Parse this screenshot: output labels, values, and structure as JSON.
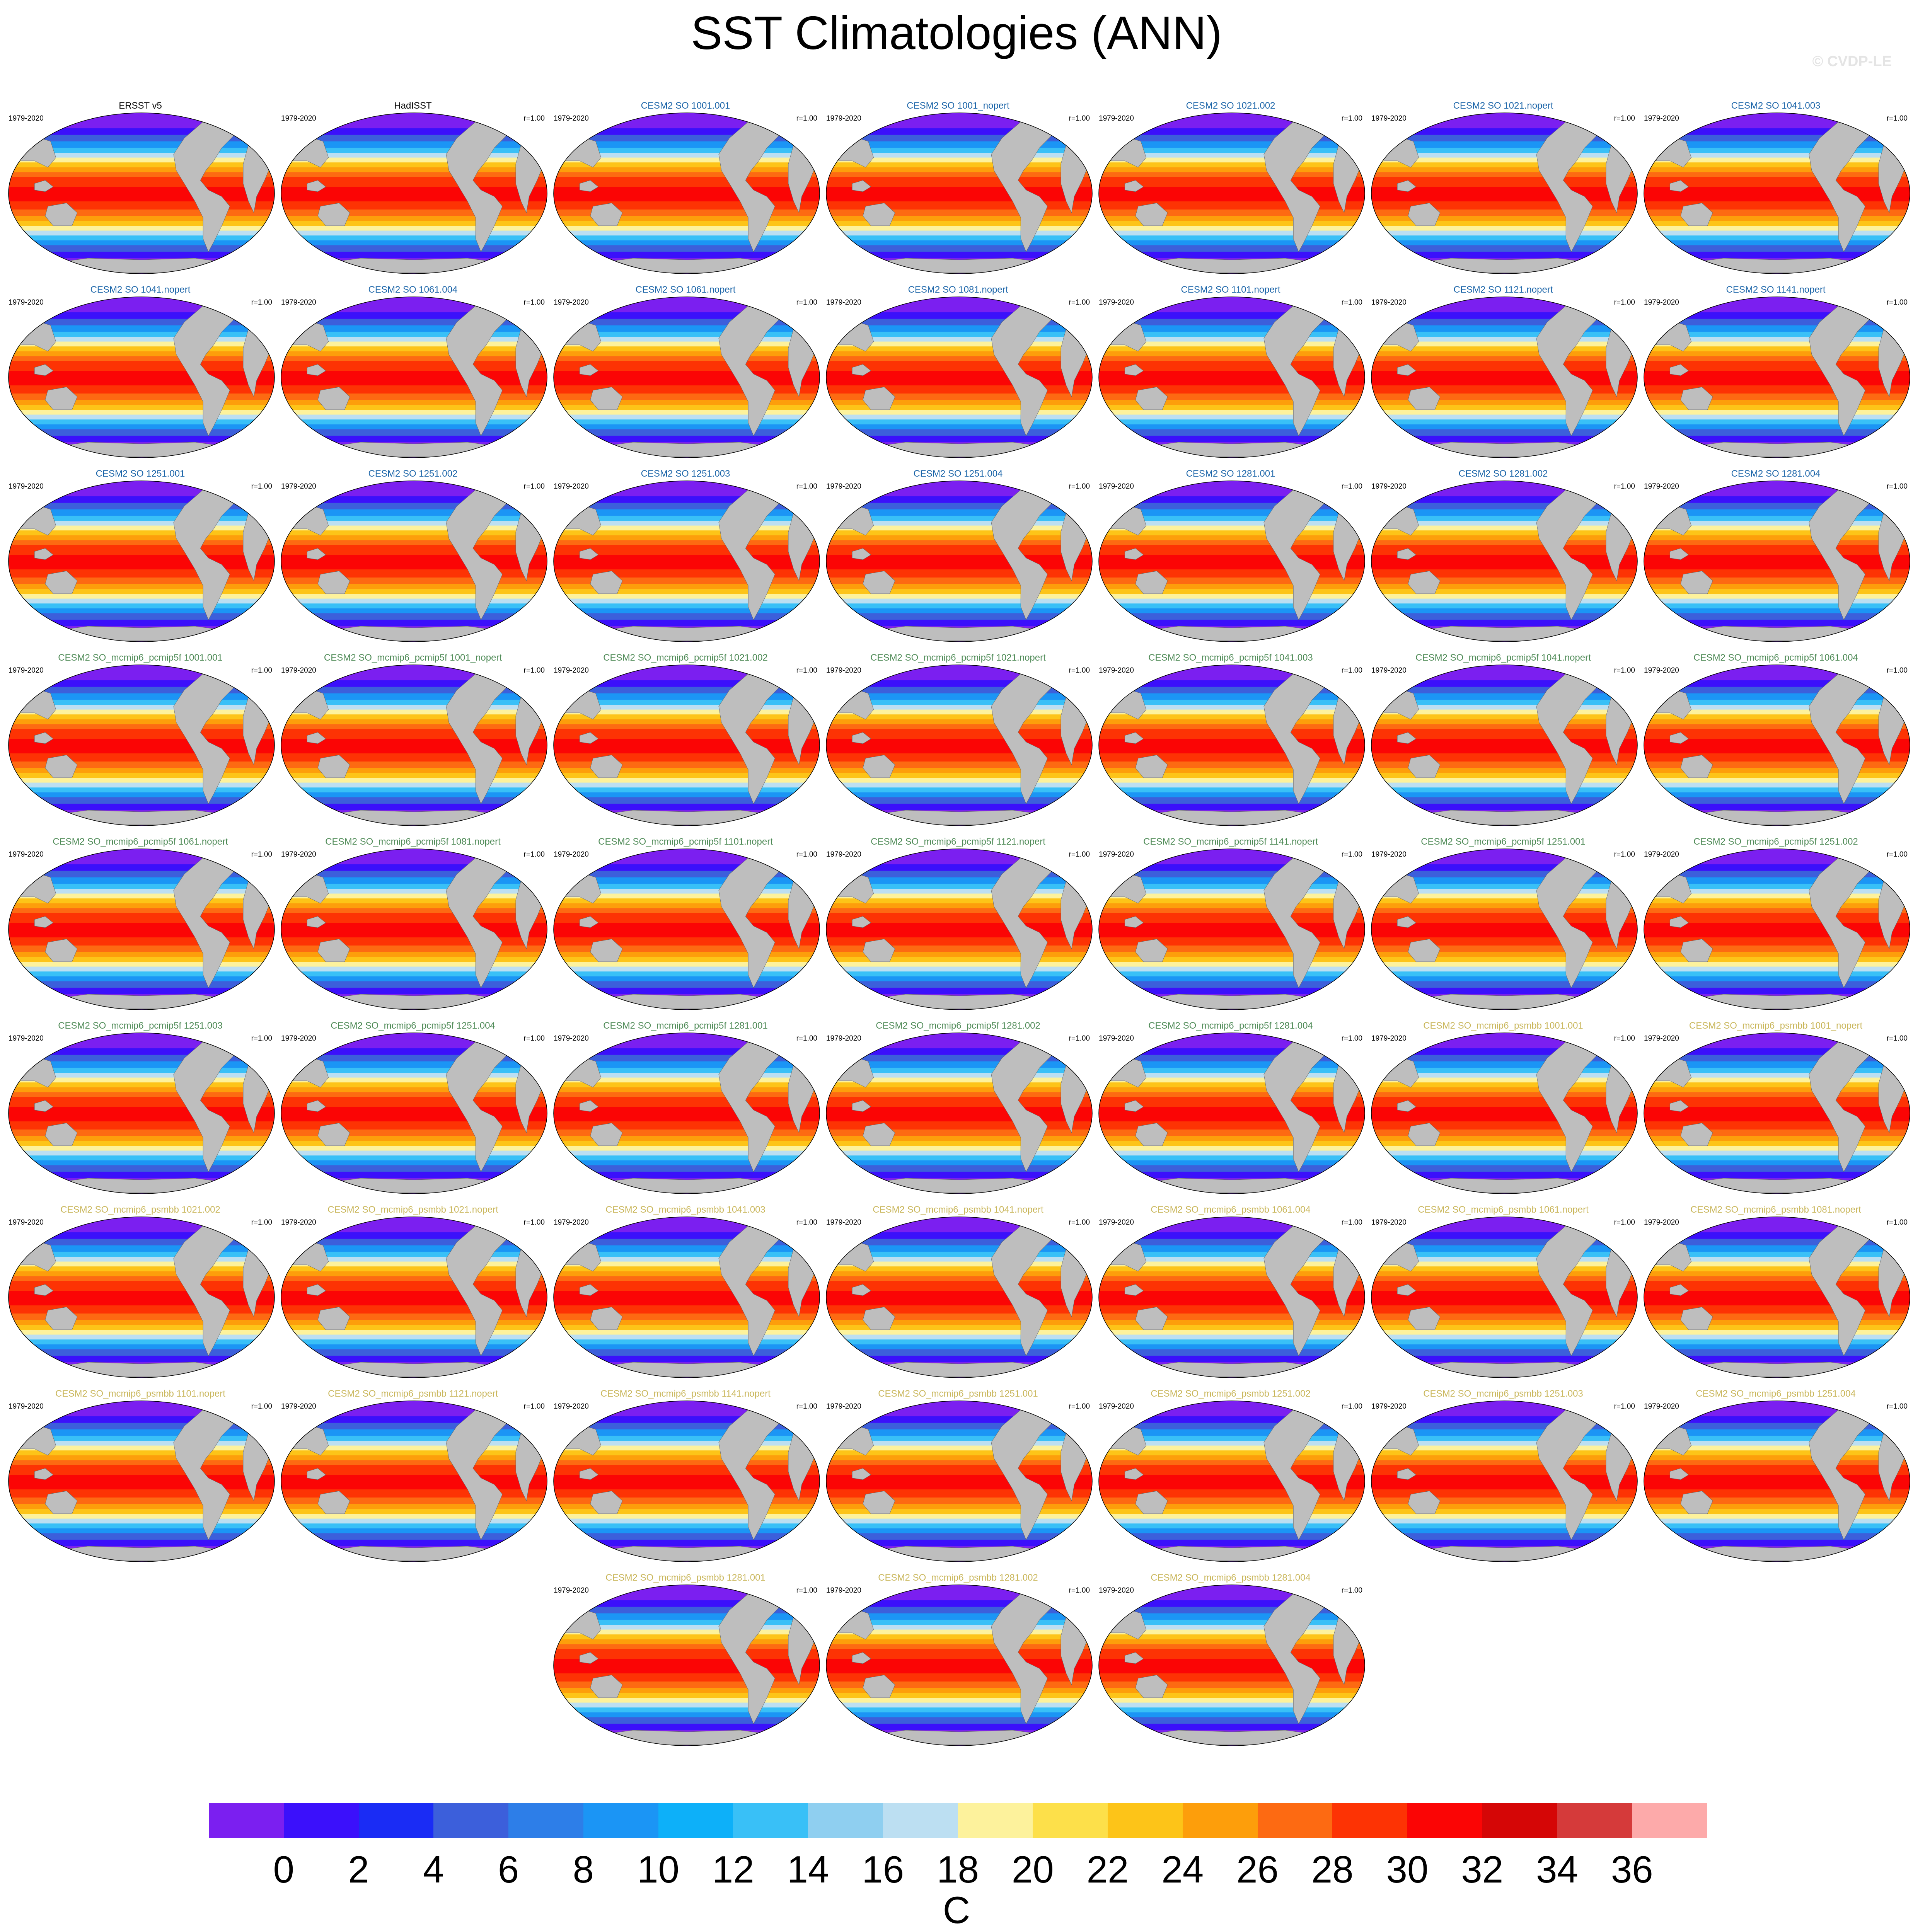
{
  "title": "SST Climatologies (ANN)",
  "watermark": "© CVDP-LE",
  "colors": {
    "obs_title": "#000000",
    "group1_title": "#1a64a8",
    "group2_title": "#4e8a56",
    "group3_title": "#c9b65a",
    "land": "#bebebe"
  },
  "chart_data": {
    "type": "heatmap",
    "projection": "Robinson (global map panels)",
    "variable": "SST",
    "season": "ANN",
    "years": "1979-2020",
    "panels": [
      {
        "title": "ERSST v5",
        "years": "1979-2020",
        "r": "",
        "group": "obs"
      },
      {
        "title": "HadISST",
        "years": "1979-2020",
        "r": "r=1.00",
        "group": "obs"
      },
      {
        "title": "CESM2 SO 1001.001",
        "years": "1979-2020",
        "r": "r=1.00",
        "group": "group1"
      },
      {
        "title": "CESM2 SO 1001_nopert",
        "years": "1979-2020",
        "r": "r=1.00",
        "group": "group1"
      },
      {
        "title": "CESM2 SO 1021.002",
        "years": "1979-2020",
        "r": "r=1.00",
        "group": "group1"
      },
      {
        "title": "CESM2 SO 1021.nopert",
        "years": "1979-2020",
        "r": "r=1.00",
        "group": "group1"
      },
      {
        "title": "CESM2 SO 1041.003",
        "years": "1979-2020",
        "r": "r=1.00",
        "group": "group1"
      },
      {
        "title": "CESM2 SO 1041.nopert",
        "years": "1979-2020",
        "r": "r=1.00",
        "group": "group1"
      },
      {
        "title": "CESM2 SO 1061.004",
        "years": "1979-2020",
        "r": "r=1.00",
        "group": "group1"
      },
      {
        "title": "CESM2 SO 1061.nopert",
        "years": "1979-2020",
        "r": "r=1.00",
        "group": "group1"
      },
      {
        "title": "CESM2 SO 1081.nopert",
        "years": "1979-2020",
        "r": "r=1.00",
        "group": "group1"
      },
      {
        "title": "CESM2 SO 1101.nopert",
        "years": "1979-2020",
        "r": "r=1.00",
        "group": "group1"
      },
      {
        "title": "CESM2 SO 1121.nopert",
        "years": "1979-2020",
        "r": "r=1.00",
        "group": "group1"
      },
      {
        "title": "CESM2 SO 1141.nopert",
        "years": "1979-2020",
        "r": "r=1.00",
        "group": "group1"
      },
      {
        "title": "CESM2 SO 1251.001",
        "years": "1979-2020",
        "r": "r=1.00",
        "group": "group1"
      },
      {
        "title": "CESM2 SO 1251.002",
        "years": "1979-2020",
        "r": "r=1.00",
        "group": "group1"
      },
      {
        "title": "CESM2 SO 1251.003",
        "years": "1979-2020",
        "r": "r=1.00",
        "group": "group1"
      },
      {
        "title": "CESM2 SO 1251.004",
        "years": "1979-2020",
        "r": "r=1.00",
        "group": "group1"
      },
      {
        "title": "CESM2 SO 1281.001",
        "years": "1979-2020",
        "r": "r=1.00",
        "group": "group1"
      },
      {
        "title": "CESM2 SO 1281.002",
        "years": "1979-2020",
        "r": "r=1.00",
        "group": "group1"
      },
      {
        "title": "CESM2 SO 1281.004",
        "years": "1979-2020",
        "r": "r=1.00",
        "group": "group1"
      },
      {
        "title": "CESM2 SO_mcmip6_pcmip5f 1001.001",
        "years": "1979-2020",
        "r": "r=1.00",
        "group": "group2"
      },
      {
        "title": "CESM2 SO_mcmip6_pcmip5f 1001_nopert",
        "years": "1979-2020",
        "r": "r=1.00",
        "group": "group2"
      },
      {
        "title": "CESM2 SO_mcmip6_pcmip5f 1021.002",
        "years": "1979-2020",
        "r": "r=1.00",
        "group": "group2"
      },
      {
        "title": "CESM2 SO_mcmip6_pcmip5f 1021.nopert",
        "years": "1979-2020",
        "r": "r=1.00",
        "group": "group2"
      },
      {
        "title": "CESM2 SO_mcmip6_pcmip5f 1041.003",
        "years": "1979-2020",
        "r": "r=1.00",
        "group": "group2"
      },
      {
        "title": "CESM2 SO_mcmip6_pcmip5f 1041.nopert",
        "years": "1979-2020",
        "r": "r=1.00",
        "group": "group2"
      },
      {
        "title": "CESM2 SO_mcmip6_pcmip5f 1061.004",
        "years": "1979-2020",
        "r": "r=1.00",
        "group": "group2"
      },
      {
        "title": "CESM2 SO_mcmip6_pcmip5f 1061.nopert",
        "years": "1979-2020",
        "r": "r=1.00",
        "group": "group2"
      },
      {
        "title": "CESM2 SO_mcmip6_pcmip5f 1081.nopert",
        "years": "1979-2020",
        "r": "r=1.00",
        "group": "group2"
      },
      {
        "title": "CESM2 SO_mcmip6_pcmip5f 1101.nopert",
        "years": "1979-2020",
        "r": "r=1.00",
        "group": "group2"
      },
      {
        "title": "CESM2 SO_mcmip6_pcmip5f 1121.nopert",
        "years": "1979-2020",
        "r": "r=1.00",
        "group": "group2"
      },
      {
        "title": "CESM2 SO_mcmip6_pcmip5f 1141.nopert",
        "years": "1979-2020",
        "r": "r=1.00",
        "group": "group2"
      },
      {
        "title": "CESM2 SO_mcmip6_pcmip5f 1251.001",
        "years": "1979-2020",
        "r": "r=1.00",
        "group": "group2"
      },
      {
        "title": "CESM2 SO_mcmip6_pcmip5f 1251.002",
        "years": "1979-2020",
        "r": "r=1.00",
        "group": "group2"
      },
      {
        "title": "CESM2 SO_mcmip6_pcmip5f 1251.003",
        "years": "1979-2020",
        "r": "r=1.00",
        "group": "group2"
      },
      {
        "title": "CESM2 SO_mcmip6_pcmip5f 1251.004",
        "years": "1979-2020",
        "r": "r=1.00",
        "group": "group2"
      },
      {
        "title": "CESM2 SO_mcmip6_pcmip5f 1281.001",
        "years": "1979-2020",
        "r": "r=1.00",
        "group": "group2"
      },
      {
        "title": "CESM2 SO_mcmip6_pcmip5f 1281.002",
        "years": "1979-2020",
        "r": "r=1.00",
        "group": "group2"
      },
      {
        "title": "CESM2 SO_mcmip6_pcmip5f 1281.004",
        "years": "1979-2020",
        "r": "r=1.00",
        "group": "group2"
      },
      {
        "title": "CESM2 SO_mcmip6_psmbb 1001.001",
        "years": "1979-2020",
        "r": "r=1.00",
        "group": "group3"
      },
      {
        "title": "CESM2 SO_mcmip6_psmbb 1001_nopert",
        "years": "1979-2020",
        "r": "r=1.00",
        "group": "group3"
      },
      {
        "title": "CESM2 SO_mcmip6_psmbb 1021.002",
        "years": "1979-2020",
        "r": "r=1.00",
        "group": "group3"
      },
      {
        "title": "CESM2 SO_mcmip6_psmbb 1021.nopert",
        "years": "1979-2020",
        "r": "r=1.00",
        "group": "group3"
      },
      {
        "title": "CESM2 SO_mcmip6_psmbb 1041.003",
        "years": "1979-2020",
        "r": "r=1.00",
        "group": "group3"
      },
      {
        "title": "CESM2 SO_mcmip6_psmbb 1041.nopert",
        "years": "1979-2020",
        "r": "r=1.00",
        "group": "group3"
      },
      {
        "title": "CESM2 SO_mcmip6_psmbb 1061.004",
        "years": "1979-2020",
        "r": "r=1.00",
        "group": "group3"
      },
      {
        "title": "CESM2 SO_mcmip6_psmbb 1061.nopert",
        "years": "1979-2020",
        "r": "r=1.00",
        "group": "group3"
      },
      {
        "title": "CESM2 SO_mcmip6_psmbb 1081.nopert",
        "years": "1979-2020",
        "r": "r=1.00",
        "group": "group3"
      },
      {
        "title": "CESM2 SO_mcmip6_psmbb 1101.nopert",
        "years": "1979-2020",
        "r": "r=1.00",
        "group": "group3"
      },
      {
        "title": "CESM2 SO_mcmip6_psmbb 1121.nopert",
        "years": "1979-2020",
        "r": "r=1.00",
        "group": "group3"
      },
      {
        "title": "CESM2 SO_mcmip6_psmbb 1141.nopert",
        "years": "1979-2020",
        "r": "r=1.00",
        "group": "group3"
      },
      {
        "title": "CESM2 SO_mcmip6_psmbb 1251.001",
        "years": "1979-2020",
        "r": "r=1.00",
        "group": "group3"
      },
      {
        "title": "CESM2 SO_mcmip6_psmbb 1251.002",
        "years": "1979-2020",
        "r": "r=1.00",
        "group": "group3"
      },
      {
        "title": "CESM2 SO_mcmip6_psmbb 1251.003",
        "years": "1979-2020",
        "r": "r=1.00",
        "group": "group3"
      },
      {
        "title": "CESM2 SO_mcmip6_psmbb 1251.004",
        "years": "1979-2020",
        "r": "r=1.00",
        "group": "group3"
      },
      {
        "title": "CESM2 SO_mcmip6_psmbb 1281.001",
        "years": "1979-2020",
        "r": "r=1.00",
        "group": "group3"
      },
      {
        "title": "CESM2 SO_mcmip6_psmbb 1281.002",
        "years": "1979-2020",
        "r": "r=1.00",
        "group": "group3"
      },
      {
        "title": "CESM2 SO_mcmip6_psmbb 1281.004",
        "years": "1979-2020",
        "r": "r=1.00",
        "group": "group3"
      }
    ],
    "colorbar": {
      "units": "C",
      "labels": [
        "0",
        "2",
        "4",
        "6",
        "8",
        "10",
        "12",
        "14",
        "16",
        "18",
        "20",
        "22",
        "24",
        "26",
        "28",
        "30",
        "32",
        "34",
        "36"
      ],
      "colors": [
        "#7b1ff0",
        "#3b10fb",
        "#1a2cf5",
        "#3c5fdb",
        "#2d7ee8",
        "#1b95f5",
        "#0db0f9",
        "#39c0f7",
        "#8fcff0",
        "#bcdff2",
        "#fdf29c",
        "#fde04a",
        "#fdc418",
        "#fd9e0b",
        "#fd6a12",
        "#fd3304",
        "#fb0505",
        "#d50606",
        "#d53a3a",
        "#fdaaaa"
      ]
    }
  }
}
